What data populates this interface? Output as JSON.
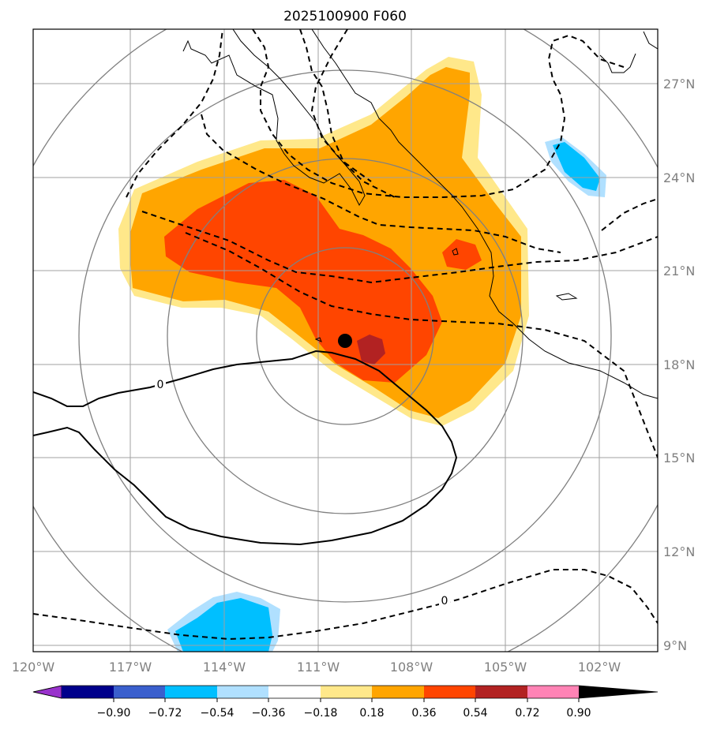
{
  "title": "2025100900 F060",
  "map": {
    "lon_labels": [
      "120°W",
      "117°W",
      "114°W",
      "111°W",
      "108°W",
      "105°W",
      "102°W"
    ],
    "lat_labels": [
      "27°N",
      "24°N",
      "21°N",
      "18°N",
      "15°N",
      "12°N",
      "9°N"
    ],
    "contour_labels": [
      "0",
      "0"
    ],
    "center_marker": "storm-center",
    "extent": {
      "lon_min": -120,
      "lon_max": -100.1,
      "lat_min": 8.7,
      "lat_max": 28.7
    }
  },
  "colorbar": {
    "ticks": [
      "−0.90",
      "−0.72",
      "−0.54",
      "−0.36",
      "−0.18",
      "0.18",
      "0.36",
      "0.54",
      "0.72",
      "0.90"
    ],
    "colors": [
      "#9932cc",
      "#00008b",
      "#3a5fcd",
      "#00bfff",
      "#b0e0ff",
      "#ffffff",
      "#ffe88a",
      "#ffa500",
      "#ff4500",
      "#b22222",
      "#ff83b5"
    ]
  },
  "fill_colors": {
    "c018": "#ffe88a",
    "c036": "#ffa500",
    "c054": "#ff4500",
    "c072": "#b22222",
    "n018": "#b0e0ff",
    "n036": "#00bfff"
  }
}
